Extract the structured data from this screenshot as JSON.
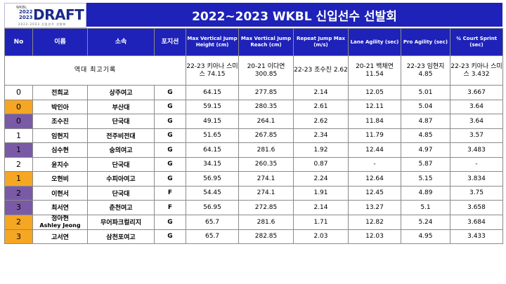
{
  "logo": {
    "mini": "WKBL",
    "year_top": "2022",
    "year_bottom": "2023",
    "word": "DRAFT",
    "sub": "2022-2023 신입선수 선발회"
  },
  "title": "2022~2023 WKBL 신입선수 선발회",
  "colors": {
    "header_bg": "#1e22b8",
    "no_white": "#ffffff",
    "no_orange": "#f5a623",
    "no_purple": "#7a5aa6"
  },
  "headers": {
    "no": "No",
    "name": "이름",
    "team": "소속",
    "position": "포지션",
    "mvjh": "Max Vertical Jump Height (cm)",
    "mvjr": "Max Vertical Jump Reach (cm)",
    "rjm": "Repeat Jump Max (m/s)",
    "lane": "Lane Agility (sec)",
    "pro": "Pro Agility (sec)",
    "sprint": "¾ Court Sprint (sec)"
  },
  "records": {
    "label": "역대 최고기록",
    "mvjh": "22-23 키아나 스미스 74.15",
    "mvjr": "20-21 이다연 300.85",
    "rjm": "22-23 조수진 2.62",
    "lane": "20-21 백채연 11.54",
    "pro": "22-23 임현지 4.85",
    "sprint": "22-23 키아나 스미스 3.432"
  },
  "rows": [
    {
      "no": "0",
      "name": "전희교",
      "name_en": "",
      "team": "상주여고",
      "pos": "G",
      "mvjh": "64.15",
      "mvjr": "277.85",
      "rjm": "2.14",
      "lane": "12.05",
      "pro": "5.01",
      "sprint": "3.667",
      "color": "white"
    },
    {
      "no": "0",
      "name": "박인아",
      "name_en": "",
      "team": "부산대",
      "pos": "G",
      "mvjh": "59.15",
      "mvjr": "280.35",
      "rjm": "2.61",
      "lane": "12.11",
      "pro": "5.04",
      "sprint": "3.64",
      "color": "orange"
    },
    {
      "no": "0",
      "name": "조수진",
      "name_en": "",
      "team": "단국대",
      "pos": "G",
      "mvjh": "49.15",
      "mvjr": "264.1",
      "rjm": "2.62",
      "lane": "11.84",
      "pro": "4.87",
      "sprint": "3.64",
      "color": "purple"
    },
    {
      "no": "1",
      "name": "임현지",
      "name_en": "",
      "team": "전주비전대",
      "pos": "G",
      "mvjh": "51.65",
      "mvjr": "267.85",
      "rjm": "2.34",
      "lane": "11.79",
      "pro": "4.85",
      "sprint": "3.57",
      "color": "white"
    },
    {
      "no": "1",
      "name": "심수현",
      "name_en": "",
      "team": "숭의여고",
      "pos": "G",
      "mvjh": "64.15",
      "mvjr": "281.6",
      "rjm": "1.92",
      "lane": "12.44",
      "pro": "4.97",
      "sprint": "3.483",
      "color": "purple"
    },
    {
      "no": "2",
      "name": "윤지수",
      "name_en": "",
      "team": "단국대",
      "pos": "G",
      "mvjh": "34.15",
      "mvjr": "260.35",
      "rjm": "0.87",
      "lane": "-",
      "pro": "5.87",
      "sprint": "-",
      "color": "white"
    },
    {
      "no": "1",
      "name": "오현비",
      "name_en": "",
      "team": "수피아여고",
      "pos": "G",
      "mvjh": "56.95",
      "mvjr": "274.1",
      "rjm": "2.24",
      "lane": "12.64",
      "pro": "5.15",
      "sprint": "3.834",
      "color": "orange"
    },
    {
      "no": "2",
      "name": "이현서",
      "name_en": "",
      "team": "단국대",
      "pos": "F",
      "mvjh": "54.45",
      "mvjr": "274.1",
      "rjm": "1.91",
      "lane": "12.45",
      "pro": "4.89",
      "sprint": "3.75",
      "color": "purple"
    },
    {
      "no": "3",
      "name": "최서연",
      "name_en": "",
      "team": "춘천여고",
      "pos": "F",
      "mvjh": "56.95",
      "mvjr": "272.85",
      "rjm": "2.14",
      "lane": "13.27",
      "pro": "5.1",
      "sprint": "3.658",
      "color": "purple"
    },
    {
      "no": "2",
      "name": "정아현",
      "name_en": "Ashley Jeong",
      "team": "무어파크컬리지",
      "pos": "G",
      "mvjh": "65.7",
      "mvjr": "281.6",
      "rjm": "1.71",
      "lane": "12.82",
      "pro": "5.24",
      "sprint": "3.684",
      "color": "orange"
    },
    {
      "no": "3",
      "name": "고서연",
      "name_en": "",
      "team": "삼천포여고",
      "pos": "G",
      "mvjh": "65.7",
      "mvjr": "282.85",
      "rjm": "2.03",
      "lane": "12.03",
      "pro": "4.95",
      "sprint": "3.433",
      "color": "orange"
    }
  ]
}
